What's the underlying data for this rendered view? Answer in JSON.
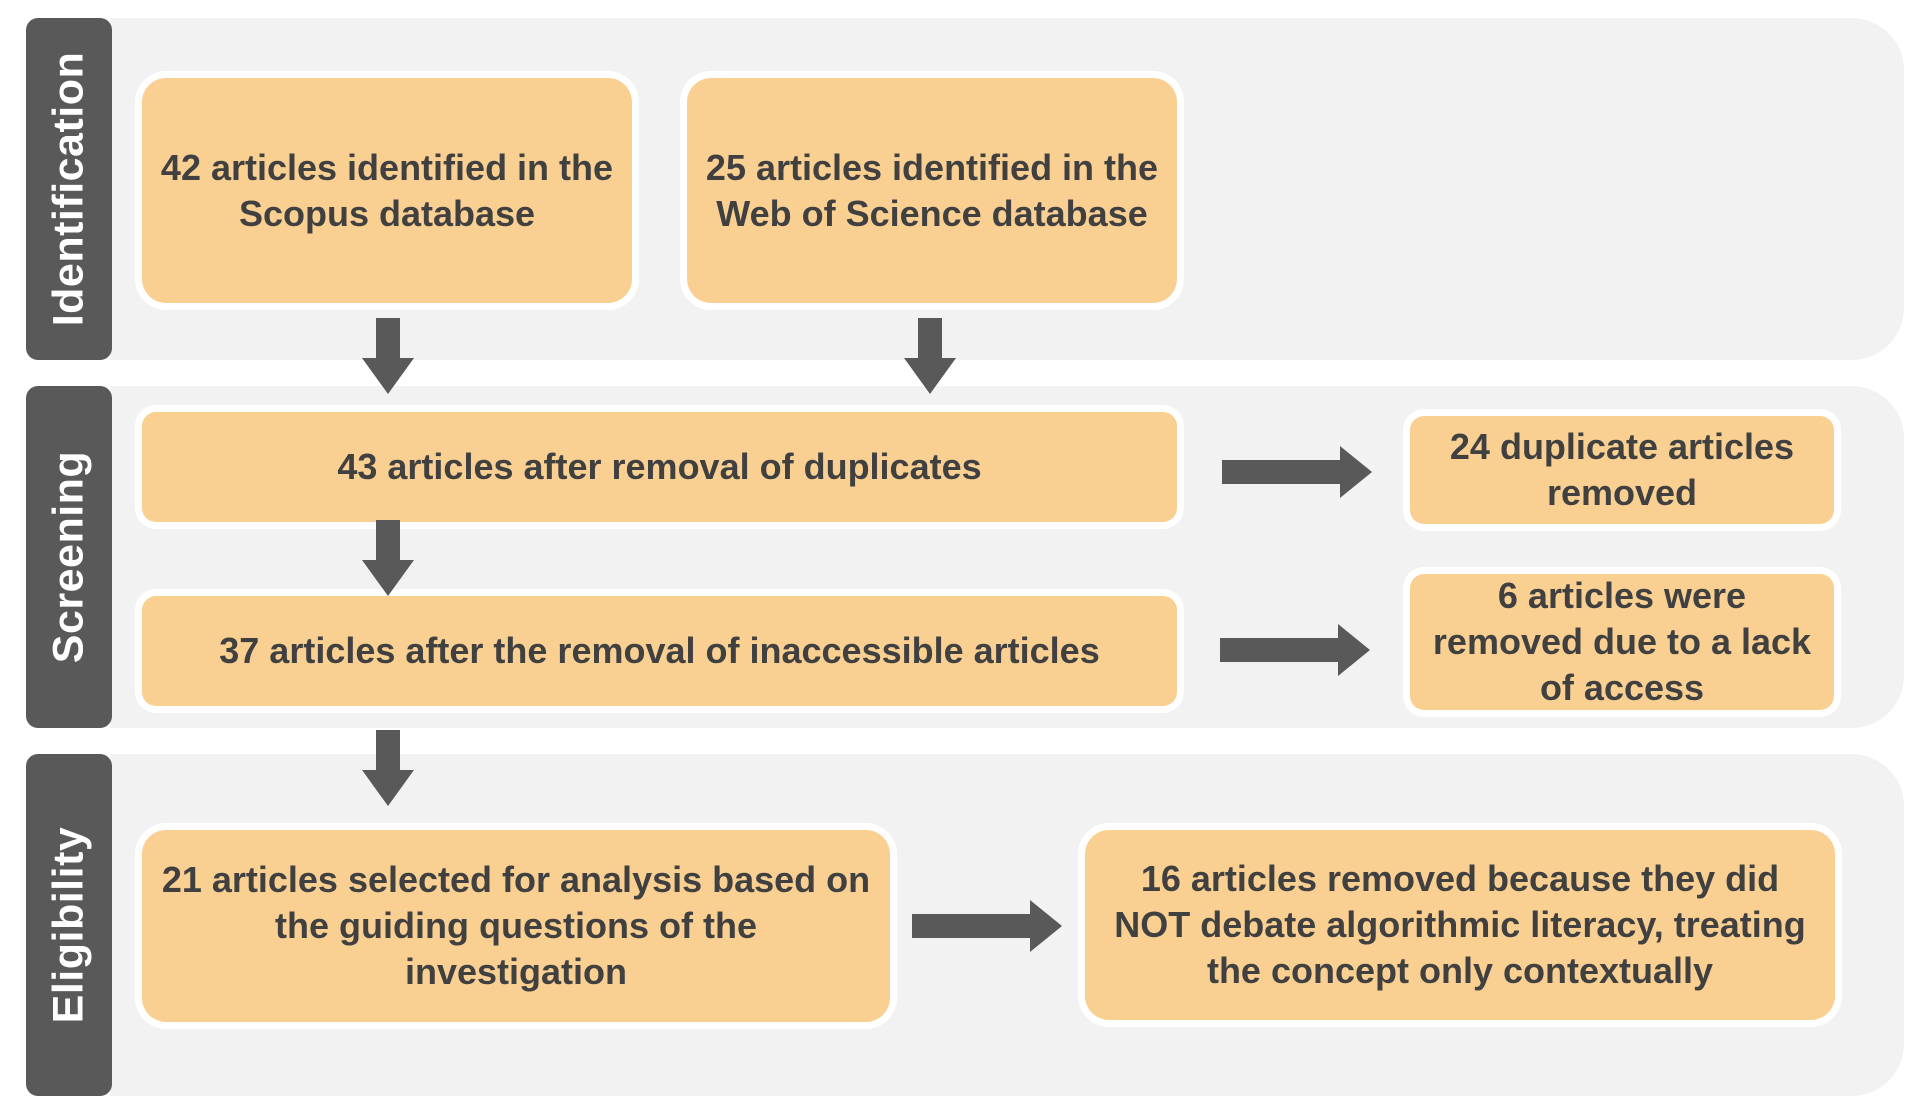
{
  "stages": {
    "identification": "Identification",
    "screening": "Screening",
    "eligibility": "Eligibility"
  },
  "boxes": {
    "scopus": "42 articles identified in the Scopus database",
    "wos": "25 articles identified in the Web of Science database",
    "after_duplicates": "43 articles after removal of duplicates",
    "duplicates_removed": "24 duplicate articles removed",
    "after_inaccessible": "37 articles after the removal of inaccessible articles",
    "no_access_removed": "6 articles were removed due to a lack of access",
    "selected": "21 articles selected for analysis based on the guiding questions of the investigation",
    "excluded": "16 articles removed because they did NOT debate algorithmic literacy, treating the concept only contextually"
  },
  "colors": {
    "box_fill": "#fad092",
    "text": "#404040",
    "stage_fill": "#595959",
    "band_fill": "#f2f2f2",
    "arrow": "#595959"
  }
}
